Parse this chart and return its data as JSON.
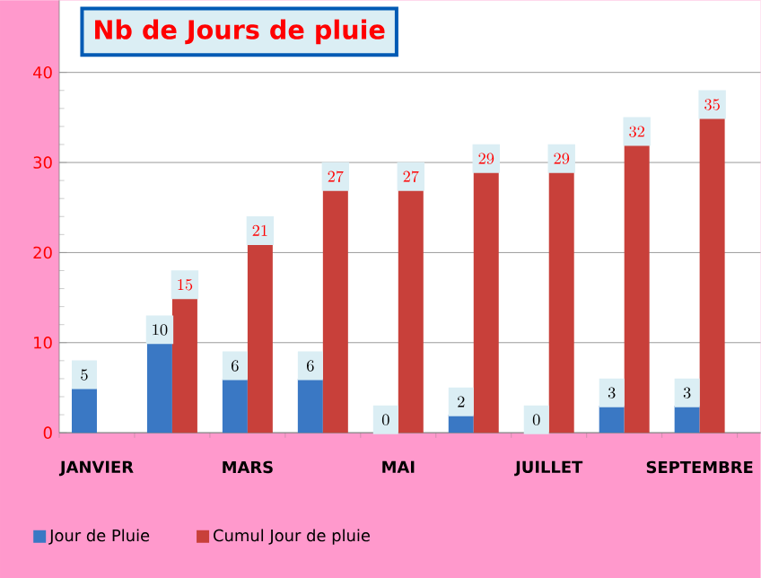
{
  "chart_data": {
    "type": "bar",
    "title": "Nb de Jours de pluie",
    "categories": [
      "JANVIER",
      null,
      "MARS",
      null,
      "MAI",
      null,
      "JUILLET",
      null,
      "SEPTEMBRE"
    ],
    "series": [
      {
        "name": "Jour de Pluie",
        "color": "#3a78c4",
        "values": [
          5,
          10,
          6,
          6,
          0,
          2,
          0,
          3,
          3
        ]
      },
      {
        "name": "Cumul Jour de pluie",
        "color": "#c8403a",
        "values": [
          null,
          15,
          21,
          27,
          27,
          29,
          29,
          32,
          35
        ]
      }
    ],
    "ylim": [
      0,
      48
    ],
    "yticks": [
      0,
      10,
      20,
      30,
      40
    ],
    "grid": "y",
    "legend": "bottom",
    "data_labels": true
  }
}
